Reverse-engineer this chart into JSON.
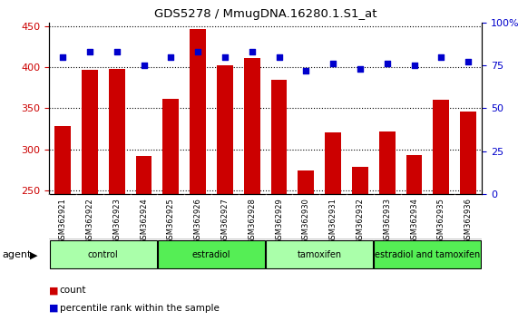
{
  "title": "GDS5278 / MmugDNA.16280.1.S1_at",
  "samples": [
    "GSM362921",
    "GSM362922",
    "GSM362923",
    "GSM362924",
    "GSM362925",
    "GSM362926",
    "GSM362927",
    "GSM362928",
    "GSM362929",
    "GSM362930",
    "GSM362931",
    "GSM362932",
    "GSM362933",
    "GSM362934",
    "GSM362935",
    "GSM362936"
  ],
  "counts": [
    328,
    397,
    398,
    292,
    362,
    447,
    403,
    412,
    385,
    274,
    321,
    278,
    322,
    293,
    361,
    346
  ],
  "percentiles": [
    80,
    83,
    83,
    75,
    80,
    83,
    80,
    83,
    80,
    72,
    76,
    73,
    76,
    75,
    80,
    77
  ],
  "groups": [
    {
      "label": "control",
      "start": 0,
      "end": 4,
      "color": "#aaffaa"
    },
    {
      "label": "estradiol",
      "start": 4,
      "end": 8,
      "color": "#55ee55"
    },
    {
      "label": "tamoxifen",
      "start": 8,
      "end": 12,
      "color": "#aaffaa"
    },
    {
      "label": "estradiol and tamoxifen",
      "start": 12,
      "end": 16,
      "color": "#55ee55"
    }
  ],
  "ylim_left": [
    245,
    455
  ],
  "ylim_right": [
    0,
    100
  ],
  "yticks_left": [
    250,
    300,
    350,
    400,
    450
  ],
  "yticks_right": [
    0,
    25,
    50,
    75,
    100
  ],
  "bar_color": "#cc0000",
  "dot_color": "#0000cc",
  "bar_width": 0.6,
  "background_color": "#ffffff",
  "grid_color": "#000000",
  "tick_label_color_left": "#cc0000",
  "tick_label_color_right": "#0000cc",
  "sample_box_color": "#c0c0c0",
  "agent_label": "agent"
}
